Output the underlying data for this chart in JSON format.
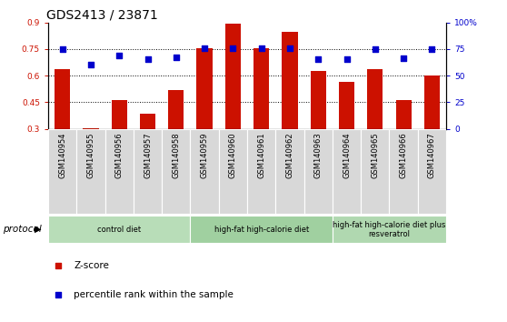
{
  "title": "GDS2413 / 23871",
  "samples": [
    "GSM140954",
    "GSM140955",
    "GSM140956",
    "GSM140957",
    "GSM140958",
    "GSM140959",
    "GSM140960",
    "GSM140961",
    "GSM140962",
    "GSM140963",
    "GSM140964",
    "GSM140965",
    "GSM140966",
    "GSM140967"
  ],
  "zscore": [
    0.635,
    0.305,
    0.46,
    0.385,
    0.52,
    0.755,
    0.895,
    0.755,
    0.845,
    0.625,
    0.565,
    0.635,
    0.46,
    0.6
  ],
  "percentile": [
    0.748,
    0.665,
    0.715,
    0.695,
    0.705,
    0.757,
    0.755,
    0.757,
    0.757,
    0.695,
    0.695,
    0.75,
    0.7,
    0.748
  ],
  "ylim_left": [
    0.3,
    0.9
  ],
  "ylim_right": [
    0,
    100
  ],
  "yticks_left": [
    0.3,
    0.45,
    0.6,
    0.75,
    0.9
  ],
  "yticks_right": [
    0,
    25,
    50,
    75,
    100
  ],
  "ytick_labels_right": [
    "0",
    "25",
    "50",
    "75",
    "100%"
  ],
  "bar_color": "#cc1100",
  "dot_color": "#0000cc",
  "protocol_groups": [
    {
      "label": "control diet",
      "start": 0,
      "end": 4,
      "color": "#b8ddb8"
    },
    {
      "label": "high-fat high-calorie diet",
      "start": 5,
      "end": 9,
      "color": "#a0d0a0"
    },
    {
      "label": "high-fat high-calorie diet plus\nresveratrol",
      "start": 10,
      "end": 13,
      "color": "#b0d8b0"
    }
  ],
  "protocol_label": "protocol",
  "legend_entries": [
    {
      "label": "Z-score",
      "color": "#cc1100"
    },
    {
      "label": "percentile rank within the sample",
      "color": "#0000cc"
    }
  ],
  "title_fontsize": 10,
  "tick_fontsize": 6.5,
  "sample_fontsize": 6,
  "legend_fontsize": 7.5
}
